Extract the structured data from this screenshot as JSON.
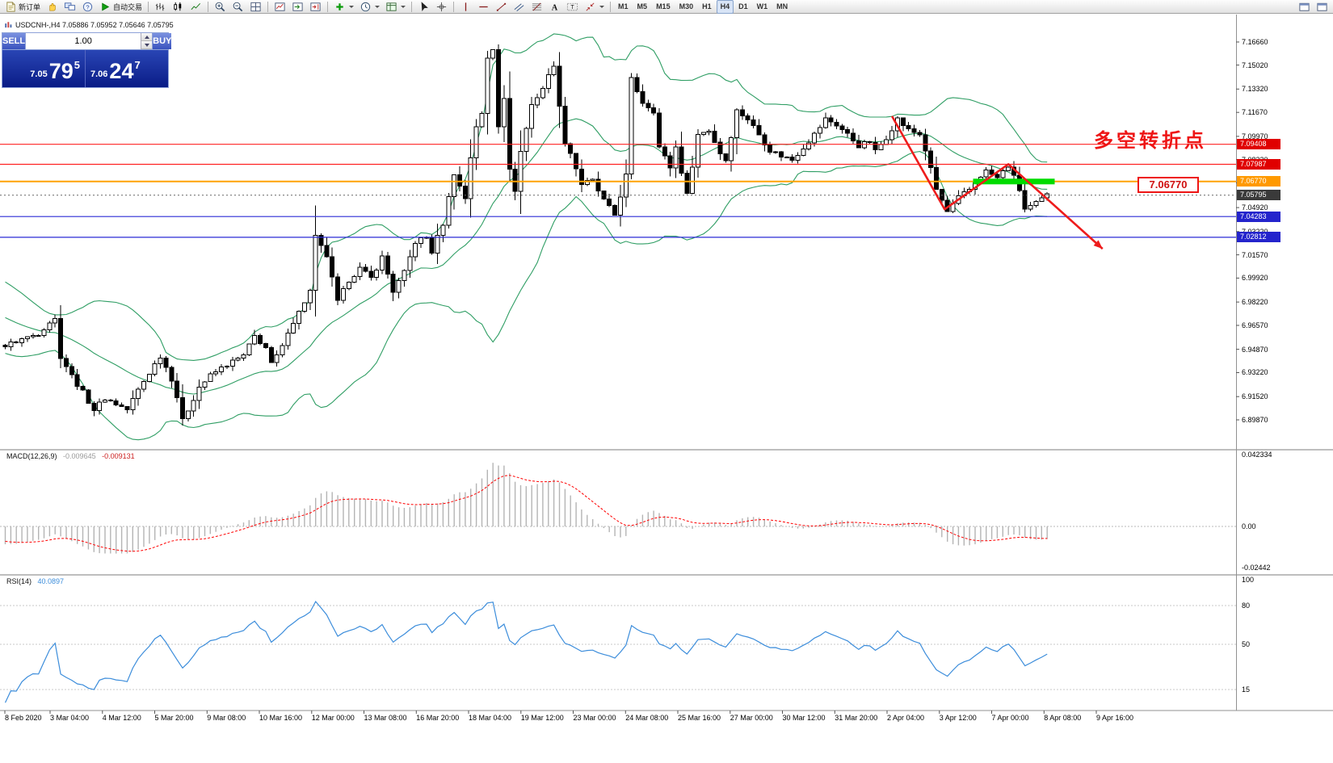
{
  "toolbar": {
    "items": [
      {
        "name": "new-order-button",
        "kind": "labeled",
        "icon": "new-order-icon",
        "label": "新订单"
      },
      {
        "name": "market-watch-button",
        "kind": "icon",
        "icon": "hand-icon"
      },
      {
        "name": "profiles-button",
        "kind": "icon",
        "icon": "monitors-icon"
      },
      {
        "name": "help-button",
        "kind": "icon",
        "icon": "help-icon"
      },
      {
        "name": "autotrading-button",
        "kind": "labeled",
        "icon": "play-icon",
        "label": "自动交易"
      },
      {
        "kind": "sep"
      },
      {
        "name": "bar-chart-button",
        "kind": "icon",
        "icon": "bar-chart-icon"
      },
      {
        "name": "candle-chart-button",
        "kind": "icon",
        "icon": "candle-chart-icon"
      },
      {
        "name": "line-chart-button",
        "kind": "icon",
        "icon": "line-chart-icon"
      },
      {
        "kind": "sep"
      },
      {
        "name": "zoom-in-button",
        "kind": "icon",
        "icon": "zoom-in-icon"
      },
      {
        "name": "zoom-out-button",
        "kind": "icon",
        "icon": "zoom-out-icon"
      },
      {
        "name": "tile-windows-button",
        "kind": "icon",
        "icon": "tile-windows-icon"
      },
      {
        "kind": "sep"
      },
      {
        "name": "new-chart-button",
        "kind": "icon",
        "icon": "new-chart-icon"
      },
      {
        "name": "auto-scroll-button",
        "kind": "icon",
        "icon": "auto-scroll-icon"
      },
      {
        "name": "chart-shift-button",
        "kind": "icon",
        "icon": "chart-shift-icon"
      },
      {
        "kind": "sep"
      },
      {
        "name": "indicators-button",
        "kind": "icon",
        "icon": "indicators-plus-icon",
        "caret": true
      },
      {
        "name": "periods-button",
        "kind": "icon",
        "icon": "clock-icon",
        "caret": true
      },
      {
        "name": "templates-button",
        "kind": "icon",
        "icon": "template-icon",
        "caret": true
      },
      {
        "kind": "sep"
      },
      {
        "name": "cursor-button",
        "kind": "icon",
        "icon": "cursor-icon"
      },
      {
        "name": "crosshair-button",
        "kind": "icon",
        "icon": "crosshair-icon"
      },
      {
        "kind": "sep"
      },
      {
        "name": "vertical-line-button",
        "kind": "icon",
        "icon": "vline-icon"
      },
      {
        "name": "horizontal-line-button",
        "kind": "icon",
        "icon": "hline-icon"
      },
      {
        "name": "trendline-button",
        "kind": "icon",
        "icon": "trendline-icon"
      },
      {
        "name": "channel-button",
        "kind": "icon",
        "icon": "channel-icon"
      },
      {
        "name": "fibonacci-button",
        "kind": "icon",
        "icon": "fibonacci-icon"
      },
      {
        "name": "text-button",
        "kind": "icon",
        "icon": "text-icon"
      },
      {
        "name": "label-button",
        "kind": "icon",
        "icon": "label-icon"
      },
      {
        "name": "arrows-button",
        "kind": "icon",
        "icon": "arrows-icon",
        "caret": true
      },
      {
        "kind": "sep"
      },
      {
        "kind": "timeframes"
      },
      {
        "kind": "spacer"
      },
      {
        "name": "window-button-1",
        "kind": "icon",
        "icon": "window-icon"
      },
      {
        "name": "window-button-2",
        "kind": "icon",
        "icon": "window-icon"
      }
    ],
    "timeframes": [
      "M1",
      "M5",
      "M15",
      "M30",
      "H1",
      "H4",
      "D1",
      "W1",
      "MN"
    ],
    "active_timeframe": "H4"
  },
  "chart_header": {
    "symbol_line": "USDCNH-,H4 7.05886 7.05952 7.05646 7.05795"
  },
  "one_click": {
    "sell_label": "SELL",
    "buy_label": "BUY",
    "volume": "1.00",
    "sell_small": "7.05",
    "sell_big": "79",
    "sell_sup": "5",
    "buy_small": "7.06",
    "buy_big": "24",
    "buy_sup": "7"
  },
  "annotation": {
    "turning_point_text": "多空转折点",
    "price_callout": "7.06770"
  },
  "chart_data": {
    "type": "candlestick",
    "symbol": "USDCNH-",
    "period": "H4",
    "ohlc": {
      "open": "7.05886",
      "high": "7.05952",
      "low": "7.05646",
      "close": "7.05795"
    },
    "price_range": [
      6.8987,
      7.1666
    ],
    "price_axis_labels": [
      "7.16660",
      "7.15020",
      "7.13320",
      "7.11670",
      "7.09970",
      "7.08320",
      "7.06670",
      "7.04920",
      "7.03220",
      "7.01570",
      "6.99920",
      "6.98220",
      "6.96570",
      "6.94870",
      "6.93220",
      "6.91520",
      "6.89870"
    ],
    "price_badges": [
      {
        "value": 7.09408,
        "text": "7.09408",
        "bg": "#e00000"
      },
      {
        "value": 7.07987,
        "text": "7.07987",
        "bg": "#e00000"
      },
      {
        "value": 7.0677,
        "text": "7.06770",
        "bg": "#ff9900"
      },
      {
        "value": 7.05795,
        "text": "7.05795",
        "bg": "#3a3a3a"
      },
      {
        "value": 7.04283,
        "text": "7.04283",
        "bg": "#2424cc"
      },
      {
        "value": 7.02812,
        "text": "7.02812",
        "bg": "#2424cc"
      }
    ],
    "hlines": [
      {
        "value": 7.09408,
        "color": "#ff2222",
        "width": 1.2
      },
      {
        "value": 7.07987,
        "color": "#ff2222",
        "width": 1.2
      },
      {
        "value": 7.0677,
        "color": "#ffa200",
        "width": 2
      },
      {
        "value": 7.04283,
        "color": "#2b2bd6",
        "width": 1.2
      },
      {
        "value": 7.02812,
        "color": "#2b2bd6",
        "width": 1.2
      }
    ],
    "current_price": 7.05795,
    "highlight_segment": {
      "price": 7.0677,
      "bar_start": 175,
      "bar_end": 189,
      "color": "#00dc00"
    },
    "trend_arrow": {
      "color": "#ee1c1c",
      "points": [
        [
          160,
          7.114
        ],
        [
          169.5,
          7.048
        ],
        [
          181,
          7.08
        ],
        [
          198,
          7.02
        ]
      ]
    },
    "bars_visible": 189,
    "price_waypoints": [
      [
        0,
        6.951
      ],
      [
        3,
        6.956
      ],
      [
        6,
        6.96
      ],
      [
        8,
        6.968
      ],
      [
        9,
        6.97
      ],
      [
        10,
        6.944
      ],
      [
        12,
        6.93
      ],
      [
        14,
        6.918
      ],
      [
        16,
        6.906
      ],
      [
        18,
        6.914
      ],
      [
        20,
        6.91
      ],
      [
        22,
        6.906
      ],
      [
        24,
        6.92
      ],
      [
        26,
        6.932
      ],
      [
        28,
        6.944
      ],
      [
        30,
        6.928
      ],
      [
        31,
        6.915
      ],
      [
        32,
        6.898
      ],
      [
        33,
        6.906
      ],
      [
        35,
        6.922
      ],
      [
        37,
        6.93
      ],
      [
        40,
        6.938
      ],
      [
        43,
        6.944
      ],
      [
        45,
        6.958
      ],
      [
        47,
        6.95
      ],
      [
        48,
        6.938
      ],
      [
        50,
        6.95
      ],
      [
        51,
        6.962
      ],
      [
        53,
        6.975
      ],
      [
        55,
        6.99
      ],
      [
        56,
        7.028
      ],
      [
        57,
        7.021
      ],
      [
        58,
        7.015
      ],
      [
        60,
        6.982
      ],
      [
        62,
        6.998
      ],
      [
        64,
        7.006
      ],
      [
        66,
        6.999
      ],
      [
        68,
        7.014
      ],
      [
        70,
        6.99
      ],
      [
        72,
        7.003
      ],
      [
        74,
        7.025
      ],
      [
        76,
        7.028
      ],
      [
        77,
        7.018
      ],
      [
        79,
        7.038
      ],
      [
        81,
        7.074
      ],
      [
        82,
        7.064
      ],
      [
        83,
        7.056
      ],
      [
        84,
        7.085
      ],
      [
        85,
        7.107
      ],
      [
        86,
        7.115
      ],
      [
        87,
        7.155
      ],
      [
        88,
        7.162
      ],
      [
        89,
        7.108
      ],
      [
        90,
        7.128
      ],
      [
        91,
        7.075
      ],
      [
        92,
        7.062
      ],
      [
        93,
        7.089
      ],
      [
        95,
        7.122
      ],
      [
        97,
        7.134
      ],
      [
        99,
        7.151
      ],
      [
        100,
        7.12
      ],
      [
        101,
        7.096
      ],
      [
        102,
        7.088
      ],
      [
        104,
        7.066
      ],
      [
        106,
        7.068
      ],
      [
        108,
        7.054
      ],
      [
        110,
        7.044
      ],
      [
        112,
        7.072
      ],
      [
        113,
        7.14
      ],
      [
        115,
        7.124
      ],
      [
        117,
        7.118
      ],
      [
        118,
        7.092
      ],
      [
        120,
        7.078
      ],
      [
        121,
        7.092
      ],
      [
        123,
        7.058
      ],
      [
        125,
        7.101
      ],
      [
        127,
        7.104
      ],
      [
        129,
        7.088
      ],
      [
        130,
        7.083
      ],
      [
        132,
        7.118
      ],
      [
        134,
        7.112
      ],
      [
        136,
        7.101
      ],
      [
        138,
        7.09
      ],
      [
        140,
        7.086
      ],
      [
        142,
        7.083
      ],
      [
        144,
        7.092
      ],
      [
        146,
        7.101
      ],
      [
        148,
        7.112
      ],
      [
        150,
        7.108
      ],
      [
        152,
        7.101
      ],
      [
        154,
        7.093
      ],
      [
        156,
        7.096
      ],
      [
        157,
        7.089
      ],
      [
        159,
        7.099
      ],
      [
        161,
        7.112
      ],
      [
        163,
        7.104
      ],
      [
        165,
        7.101
      ],
      [
        166,
        7.09
      ],
      [
        168,
        7.062
      ],
      [
        170,
        7.046
      ],
      [
        172,
        7.056
      ],
      [
        174,
        7.062
      ],
      [
        176,
        7.072
      ],
      [
        177,
        7.075
      ],
      [
        179,
        7.07
      ],
      [
        181,
        7.079
      ],
      [
        183,
        7.062
      ],
      [
        184,
        7.048
      ],
      [
        186,
        7.052
      ],
      [
        188,
        7.058
      ]
    ],
    "indicators": {
      "bollinger": {
        "color": "#2f9e64"
      },
      "macd": {
        "label": "MACD(12,26,9)",
        "value_main": "-0.009645",
        "value_signal": "-0.009131",
        "axis_labels": [
          "0.042334",
          "0.00",
          "-0.02442"
        ],
        "histogram_color": "#b4b4b4",
        "signal_color": "#ff0000"
      },
      "rsi": {
        "label": "RSI(14)",
        "value": "40.0897",
        "axis_labels": [
          "100",
          "80",
          "50",
          "15"
        ],
        "color": "#3c8ddb"
      }
    },
    "time_axis": [
      "8 Feb 2020",
      "3 Mar 04:00",
      "4 Mar 12:00",
      "5 Mar 20:00",
      "9 Mar 08:00",
      "10 Mar 16:00",
      "12 Mar 00:00",
      "13 Mar 08:00",
      "16 Mar 20:00",
      "18 Mar 04:00",
      "19 Mar 12:00",
      "23 Mar 00:00",
      "24 Mar 08:00",
      "25 Mar 16:00",
      "27 Mar 00:00",
      "30 Mar 12:00",
      "31 Mar 20:00",
      "2 Apr 04:00",
      "3 Apr 12:00",
      "7 Apr 00:00",
      "8 Apr 08:00",
      "9 Apr 16:00"
    ]
  }
}
